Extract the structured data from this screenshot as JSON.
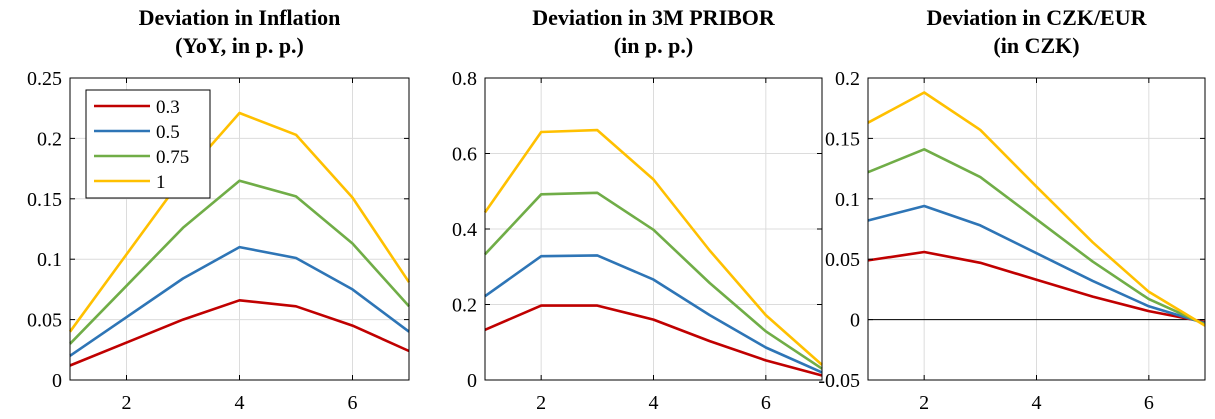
{
  "chart_data": [
    {
      "type": "line",
      "title_lines": [
        "Deviation in Inflation",
        "(YoY, in p. p.)"
      ],
      "xlabel": "",
      "ylabel": "",
      "xlim": [
        1,
        7
      ],
      "ylim": [
        0,
        0.25
      ],
      "xticks": [
        2,
        4,
        6
      ],
      "xtick_labels": [
        "2",
        "4",
        "6"
      ],
      "yticks": [
        0,
        0.05,
        0.1,
        0.15,
        0.2,
        0.25
      ],
      "ytick_labels": [
        "0",
        "0.05",
        "0.1",
        "0.15",
        "0.2",
        "0.25"
      ],
      "grid": true,
      "zero_line": false,
      "legend_position": "top-left",
      "x": [
        1,
        2,
        3,
        4,
        5,
        6,
        7
      ],
      "series": [
        {
          "name": "0.3",
          "color": "#C00000",
          "values": [
            0.012,
            0.031,
            0.05,
            0.066,
            0.061,
            0.045,
            0.024
          ]
        },
        {
          "name": "0.5",
          "color": "#2E75B6",
          "values": [
            0.02,
            0.052,
            0.084,
            0.11,
            0.101,
            0.075,
            0.04
          ]
        },
        {
          "name": "0.75",
          "color": "#70AD47",
          "values": [
            0.03,
            0.078,
            0.126,
            0.165,
            0.152,
            0.113,
            0.061
          ]
        },
        {
          "name": "1",
          "color": "#FFC000",
          "values": [
            0.04,
            0.104,
            0.168,
            0.221,
            0.203,
            0.151,
            0.081
          ]
        }
      ]
    },
    {
      "type": "line",
      "title_lines": [
        "Deviation in 3M PRIBOR",
        "(in p. p.)"
      ],
      "xlabel": "",
      "ylabel": "",
      "xlim": [
        1,
        7
      ],
      "ylim": [
        0,
        0.8
      ],
      "xticks": [
        2,
        4,
        6
      ],
      "xtick_labels": [
        "2",
        "4",
        "6"
      ],
      "yticks": [
        0,
        0.2,
        0.4,
        0.6,
        0.8
      ],
      "ytick_labels": [
        "0",
        "0.2",
        "0.4",
        "0.6",
        "0.8"
      ],
      "grid": true,
      "zero_line": false,
      "legend_position": "none",
      "x": [
        1,
        2,
        3,
        4,
        5,
        6,
        7
      ],
      "series": [
        {
          "color": "#C00000",
          "values": [
            0.133,
            0.197,
            0.197,
            0.16,
            0.103,
            0.052,
            0.012
          ]
        },
        {
          "color": "#2E75B6",
          "values": [
            0.222,
            0.328,
            0.33,
            0.266,
            0.172,
            0.086,
            0.02
          ]
        },
        {
          "color": "#70AD47",
          "values": [
            0.333,
            0.492,
            0.496,
            0.398,
            0.257,
            0.129,
            0.03
          ]
        },
        {
          "color": "#FFC000",
          "values": [
            0.444,
            0.657,
            0.662,
            0.531,
            0.343,
            0.172,
            0.04
          ]
        }
      ]
    },
    {
      "type": "line",
      "title_lines": [
        "Deviation in CZK/EUR",
        "(in CZK)"
      ],
      "xlabel": "",
      "ylabel": "",
      "xlim": [
        1,
        7
      ],
      "ylim": [
        -0.05,
        0.2
      ],
      "xticks": [
        2,
        4,
        6
      ],
      "xtick_labels": [
        "2",
        "4",
        "6"
      ],
      "yticks": [
        -0.05,
        0,
        0.05,
        0.1,
        0.15,
        0.2
      ],
      "ytick_labels": [
        "-0.05",
        "0",
        "0.05",
        "0.1",
        "0.15",
        "0.2"
      ],
      "grid": true,
      "zero_line": true,
      "legend_position": "none",
      "x": [
        1,
        2,
        3,
        4,
        5,
        6,
        7
      ],
      "series": [
        {
          "color": "#C00000",
          "values": [
            0.049,
            0.056,
            0.047,
            0.033,
            0.019,
            0.007,
            -0.002
          ]
        },
        {
          "color": "#2E75B6",
          "values": [
            0.082,
            0.094,
            0.078,
            0.055,
            0.032,
            0.011,
            -0.003
          ]
        },
        {
          "color": "#70AD47",
          "values": [
            0.122,
            0.141,
            0.118,
            0.083,
            0.048,
            0.017,
            -0.004
          ]
        },
        {
          "color": "#FFC000",
          "values": [
            0.163,
            0.188,
            0.157,
            0.11,
            0.064,
            0.023,
            -0.005
          ]
        }
      ]
    }
  ]
}
